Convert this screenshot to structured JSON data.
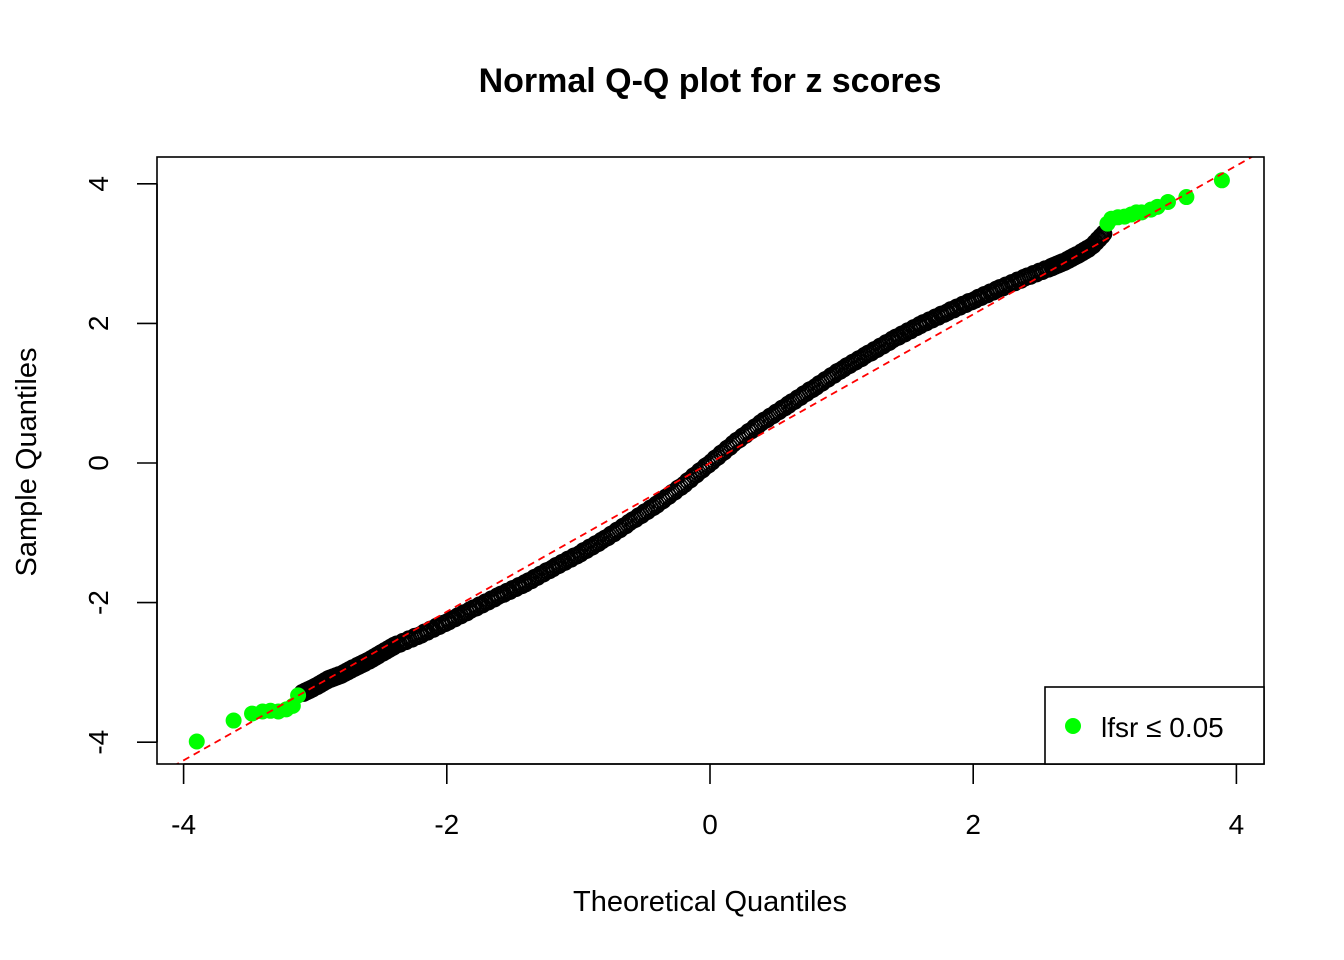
{
  "chart_data": {
    "type": "scatter",
    "title": "Normal Q-Q plot for z scores",
    "xlabel": "Theoretical Quantiles",
    "ylabel": "Sample Quantiles",
    "xlim": [
      -4.1,
      4.1
    ],
    "ylim": [
      -4.1,
      4.1
    ],
    "x_ticks": [
      -4,
      -2,
      0,
      2,
      4
    ],
    "y_ticks": [
      -4,
      -2,
      0,
      2,
      4
    ],
    "x_tick_labels": [
      "-4",
      "-2",
      "0",
      "2",
      "4"
    ],
    "y_tick_labels": [
      "-4",
      "-2",
      "0",
      "2",
      "4"
    ],
    "grid": false,
    "reference_line": {
      "style": "dashed",
      "color": "#ff0000",
      "intercept": 0.0,
      "slope": 1.065
    },
    "curve_color": "#000000",
    "curve_points": [
      [
        -3.1,
        -3.3
      ],
      [
        -3.0,
        -3.21
      ],
      [
        -2.9,
        -3.1
      ],
      [
        -2.8,
        -3.03
      ],
      [
        -2.7,
        -2.93
      ],
      [
        -2.6,
        -2.84
      ],
      [
        -2.5,
        -2.73
      ],
      [
        -2.4,
        -2.62
      ],
      [
        -2.2,
        -2.46
      ],
      [
        -2.0,
        -2.28
      ],
      [
        -1.8,
        -2.09
      ],
      [
        -1.6,
        -1.9
      ],
      [
        -1.4,
        -1.72
      ],
      [
        -1.2,
        -1.51
      ],
      [
        -1.0,
        -1.31
      ],
      [
        -0.8,
        -1.09
      ],
      [
        -0.6,
        -0.84
      ],
      [
        -0.4,
        -0.59
      ],
      [
        -0.2,
        -0.31
      ],
      [
        0.0,
        0.0
      ],
      [
        0.2,
        0.31
      ],
      [
        0.4,
        0.59
      ],
      [
        0.6,
        0.84
      ],
      [
        0.8,
        1.09
      ],
      [
        1.0,
        1.34
      ],
      [
        1.2,
        1.56
      ],
      [
        1.4,
        1.78
      ],
      [
        1.6,
        1.98
      ],
      [
        1.8,
        2.16
      ],
      [
        2.0,
        2.33
      ],
      [
        2.2,
        2.5
      ],
      [
        2.4,
        2.66
      ],
      [
        2.6,
        2.81
      ],
      [
        2.7,
        2.89
      ],
      [
        2.8,
        2.99
      ],
      [
        2.9,
        3.1
      ],
      [
        3.0,
        3.3
      ]
    ],
    "series": [
      {
        "name": "lfsr ≤ 0.05",
        "color": "#00ff00",
        "points": [
          [
            -3.9,
            -3.99
          ],
          [
            -3.62,
            -3.69
          ],
          [
            -3.48,
            -3.59
          ],
          [
            -3.4,
            -3.56
          ],
          [
            -3.34,
            -3.55
          ],
          [
            -3.28,
            -3.56
          ],
          [
            -3.22,
            -3.53
          ],
          [
            -3.17,
            -3.48
          ],
          [
            -3.13,
            -3.33
          ],
          [
            3.02,
            3.43
          ],
          [
            3.05,
            3.5
          ],
          [
            3.1,
            3.52
          ],
          [
            3.15,
            3.53
          ],
          [
            3.2,
            3.56
          ],
          [
            3.24,
            3.59
          ],
          [
            3.28,
            3.59
          ],
          [
            3.35,
            3.63
          ],
          [
            3.4,
            3.67
          ],
          [
            3.48,
            3.74
          ],
          [
            3.62,
            3.81
          ],
          [
            3.89,
            4.05
          ]
        ]
      }
    ],
    "legend": {
      "position": "bottom-right",
      "label": "lfsr ≤ 0.05",
      "color": "#00ff00"
    }
  }
}
